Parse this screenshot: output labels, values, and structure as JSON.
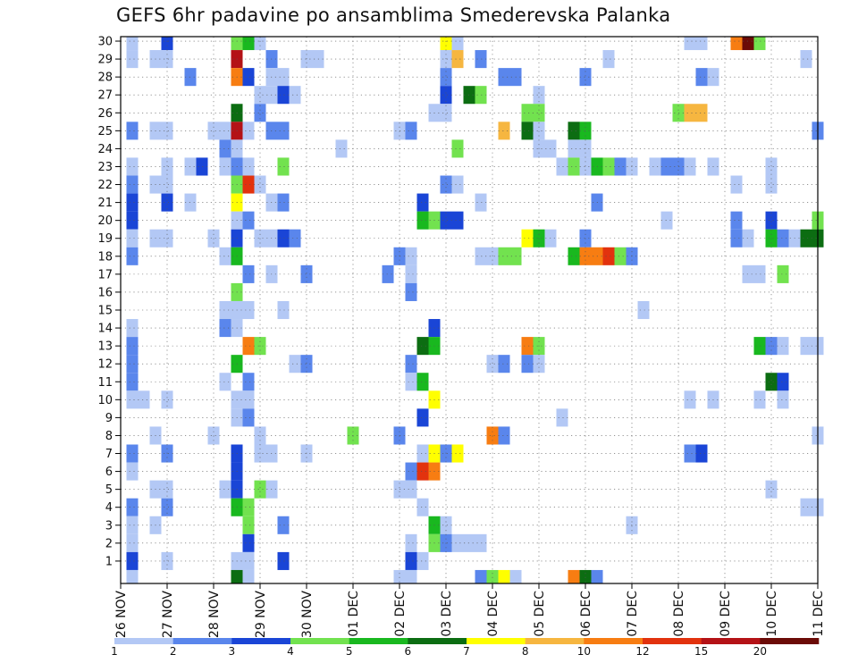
{
  "chart_data": {
    "type": "heatmap",
    "title": "GEFS 6hr padavine po ansamblima Smederevska Palanka",
    "xlabel": "",
    "ylabel": "",
    "x_tick_labels": [
      "26 NOV",
      "27 NOV",
      "28 NOV",
      "29 NOV",
      "30 NOV",
      "01 DEC",
      "02 DEC",
      "03 DEC",
      "04 DEC",
      "05 DEC",
      "06 DEC",
      "07 DEC",
      "08 DEC",
      "09 DEC",
      "10 DEC",
      "11 DEC"
    ],
    "y_tick_labels": [
      "1",
      "2",
      "3",
      "4",
      "5",
      "6",
      "7",
      "8",
      "9",
      "10",
      "11",
      "12",
      "13",
      "14",
      "15",
      "16",
      "17",
      "18",
      "19",
      "20",
      "21",
      "22",
      "23",
      "24",
      "25",
      "26",
      "27",
      "28",
      "29",
      "30"
    ],
    "x_range_steps": [
      0,
      60
    ],
    "steps_per_day": 4,
    "y_range_members": [
      0,
      30
    ],
    "grid": true,
    "grid_style": "dotted",
    "legend_position": "bottom",
    "legend": {
      "tick_labels": [
        "1",
        "2",
        "3",
        "4",
        "5",
        "6",
        "7",
        "8",
        "10",
        "12",
        "15",
        "20"
      ],
      "colors": [
        "#b3c8f5",
        "#5a86ec",
        "#1a45d6",
        "#72e24f",
        "#19b81f",
        "#0c6d12",
        "#ffff00",
        "#f6b640",
        "#f77d12",
        "#e2320e",
        "#b41216",
        "#6b0b07"
      ]
    },
    "cells": [
      [
        30,
        1,
        0
      ],
      [
        30,
        4,
        2
      ],
      [
        30,
        10,
        3
      ],
      [
        30,
        11,
        4
      ],
      [
        30,
        12,
        0
      ],
      [
        30,
        28,
        6
      ],
      [
        30,
        29,
        0
      ],
      [
        30,
        49,
        0
      ],
      [
        30,
        50,
        0
      ],
      [
        30,
        53,
        8
      ],
      [
        30,
        54,
        11
      ],
      [
        30,
        55,
        3
      ],
      [
        29,
        1,
        0
      ],
      [
        29,
        3,
        0
      ],
      [
        29,
        4,
        0
      ],
      [
        29,
        10,
        10
      ],
      [
        29,
        13,
        1
      ],
      [
        29,
        16,
        0
      ],
      [
        29,
        17,
        0
      ],
      [
        29,
        28,
        0
      ],
      [
        29,
        29,
        7
      ],
      [
        29,
        31,
        1
      ],
      [
        29,
        42,
        0
      ],
      [
        29,
        59,
        0
      ],
      [
        28,
        6,
        1
      ],
      [
        28,
        10,
        8
      ],
      [
        28,
        11,
        2
      ],
      [
        28,
        13,
        0
      ],
      [
        28,
        14,
        0
      ],
      [
        28,
        28,
        1
      ],
      [
        28,
        33,
        1
      ],
      [
        28,
        34,
        1
      ],
      [
        28,
        40,
        1
      ],
      [
        28,
        50,
        1
      ],
      [
        28,
        51,
        0
      ],
      [
        27,
        12,
        0
      ],
      [
        27,
        13,
        0
      ],
      [
        27,
        14,
        2
      ],
      [
        27,
        15,
        0
      ],
      [
        27,
        28,
        2
      ],
      [
        27,
        30,
        5
      ],
      [
        27,
        31,
        3
      ],
      [
        27,
        36,
        0
      ],
      [
        26,
        10,
        5
      ],
      [
        26,
        12,
        1
      ],
      [
        26,
        27,
        0
      ],
      [
        26,
        28,
        0
      ],
      [
        26,
        35,
        3
      ],
      [
        26,
        36,
        3
      ],
      [
        26,
        48,
        3
      ],
      [
        26,
        49,
        7
      ],
      [
        26,
        50,
        7
      ],
      [
        25,
        1,
        1
      ],
      [
        25,
        3,
        0
      ],
      [
        25,
        4,
        0
      ],
      [
        25,
        8,
        0
      ],
      [
        25,
        9,
        0
      ],
      [
        25,
        10,
        10
      ],
      [
        25,
        11,
        0
      ],
      [
        25,
        13,
        1
      ],
      [
        25,
        14,
        1
      ],
      [
        25,
        24,
        0
      ],
      [
        25,
        25,
        1
      ],
      [
        25,
        33,
        7
      ],
      [
        25,
        35,
        5
      ],
      [
        25,
        36,
        0
      ],
      [
        25,
        39,
        5
      ],
      [
        25,
        40,
        4
      ],
      [
        25,
        60,
        1
      ],
      [
        24,
        9,
        1
      ],
      [
        24,
        10,
        0
      ],
      [
        24,
        19,
        0
      ],
      [
        24,
        29,
        3
      ],
      [
        24,
        36,
        0
      ],
      [
        24,
        37,
        0
      ],
      [
        24,
        39,
        0
      ],
      [
        24,
        40,
        0
      ],
      [
        23,
        1,
        0
      ],
      [
        23,
        4,
        0
      ],
      [
        23,
        6,
        0
      ],
      [
        23,
        7,
        2
      ],
      [
        23,
        9,
        0
      ],
      [
        23,
        10,
        1
      ],
      [
        23,
        11,
        0
      ],
      [
        23,
        14,
        3
      ],
      [
        23,
        38,
        0
      ],
      [
        23,
        39,
        3
      ],
      [
        23,
        40,
        0
      ],
      [
        23,
        41,
        4
      ],
      [
        23,
        42,
        3
      ],
      [
        23,
        43,
        1
      ],
      [
        23,
        44,
        0
      ],
      [
        23,
        46,
        0
      ],
      [
        23,
        47,
        1
      ],
      [
        23,
        48,
        1
      ],
      [
        23,
        49,
        0
      ],
      [
        23,
        51,
        0
      ],
      [
        23,
        56,
        0
      ],
      [
        22,
        1,
        1
      ],
      [
        22,
        3,
        0
      ],
      [
        22,
        4,
        0
      ],
      [
        22,
        10,
        3
      ],
      [
        22,
        11,
        9
      ],
      [
        22,
        12,
        0
      ],
      [
        22,
        28,
        1
      ],
      [
        22,
        29,
        0
      ],
      [
        22,
        53,
        0
      ],
      [
        22,
        56,
        0
      ],
      [
        21,
        1,
        2
      ],
      [
        21,
        4,
        2
      ],
      [
        21,
        6,
        0
      ],
      [
        21,
        10,
        6
      ],
      [
        21,
        13,
        0
      ],
      [
        21,
        14,
        1
      ],
      [
        21,
        26,
        2
      ],
      [
        21,
        31,
        0
      ],
      [
        21,
        41,
        1
      ],
      [
        20,
        1,
        2
      ],
      [
        20,
        10,
        0
      ],
      [
        20,
        11,
        1
      ],
      [
        20,
        26,
        4
      ],
      [
        20,
        27,
        3
      ],
      [
        20,
        28,
        2
      ],
      [
        20,
        29,
        2
      ],
      [
        20,
        47,
        0
      ],
      [
        20,
        53,
        1
      ],
      [
        20,
        56,
        2
      ],
      [
        20,
        60,
        3
      ],
      [
        19,
        1,
        0
      ],
      [
        19,
        3,
        0
      ],
      [
        19,
        4,
        0
      ],
      [
        19,
        8,
        0
      ],
      [
        19,
        10,
        2
      ],
      [
        19,
        12,
        0
      ],
      [
        19,
        13,
        0
      ],
      [
        19,
        14,
        2
      ],
      [
        19,
        15,
        1
      ],
      [
        19,
        35,
        6
      ],
      [
        19,
        36,
        4
      ],
      [
        19,
        37,
        0
      ],
      [
        19,
        40,
        1
      ],
      [
        19,
        53,
        1
      ],
      [
        19,
        54,
        0
      ],
      [
        19,
        56,
        4
      ],
      [
        19,
        57,
        1
      ],
      [
        19,
        58,
        0
      ],
      [
        19,
        59,
        5
      ],
      [
        19,
        60,
        5
      ],
      [
        18,
        1,
        1
      ],
      [
        18,
        9,
        0
      ],
      [
        18,
        10,
        4
      ],
      [
        18,
        24,
        1
      ],
      [
        18,
        25,
        0
      ],
      [
        18,
        31,
        0
      ],
      [
        18,
        32,
        0
      ],
      [
        18,
        33,
        3
      ],
      [
        18,
        34,
        3
      ],
      [
        18,
        39,
        4
      ],
      [
        18,
        40,
        8
      ],
      [
        18,
        41,
        8
      ],
      [
        18,
        42,
        9
      ],
      [
        18,
        43,
        3
      ],
      [
        18,
        44,
        1
      ],
      [
        17,
        11,
        1
      ],
      [
        17,
        13,
        0
      ],
      [
        17,
        16,
        1
      ],
      [
        17,
        23,
        1
      ],
      [
        17,
        25,
        0
      ],
      [
        17,
        54,
        0
      ],
      [
        17,
        55,
        0
      ],
      [
        17,
        57,
        3
      ],
      [
        16,
        10,
        3
      ],
      [
        16,
        25,
        1
      ],
      [
        15,
        9,
        0
      ],
      [
        15,
        10,
        0
      ],
      [
        15,
        11,
        0
      ],
      [
        15,
        14,
        0
      ],
      [
        15,
        45,
        0
      ],
      [
        14,
        1,
        0
      ],
      [
        14,
        9,
        1
      ],
      [
        14,
        10,
        0
      ],
      [
        14,
        27,
        2
      ],
      [
        13,
        1,
        1
      ],
      [
        13,
        11,
        8
      ],
      [
        13,
        12,
        3
      ],
      [
        13,
        26,
        5
      ],
      [
        13,
        27,
        4
      ],
      [
        13,
        35,
        8
      ],
      [
        13,
        36,
        3
      ],
      [
        13,
        55,
        4
      ],
      [
        13,
        56,
        1
      ],
      [
        13,
        57,
        0
      ],
      [
        13,
        59,
        0
      ],
      [
        13,
        60,
        0
      ],
      [
        12,
        1,
        1
      ],
      [
        12,
        10,
        4
      ],
      [
        12,
        15,
        0
      ],
      [
        12,
        16,
        1
      ],
      [
        12,
        25,
        1
      ],
      [
        12,
        32,
        0
      ],
      [
        12,
        33,
        1
      ],
      [
        12,
        35,
        1
      ],
      [
        12,
        36,
        0
      ],
      [
        11,
        1,
        1
      ],
      [
        11,
        9,
        0
      ],
      [
        11,
        11,
        1
      ],
      [
        11,
        25,
        0
      ],
      [
        11,
        26,
        4
      ],
      [
        11,
        56,
        5
      ],
      [
        11,
        57,
        2
      ],
      [
        10,
        1,
        0
      ],
      [
        10,
        2,
        0
      ],
      [
        10,
        4,
        0
      ],
      [
        10,
        10,
        0
      ],
      [
        10,
        11,
        0
      ],
      [
        10,
        27,
        6
      ],
      [
        10,
        49,
        0
      ],
      [
        10,
        51,
        0
      ],
      [
        10,
        55,
        0
      ],
      [
        10,
        57,
        0
      ],
      [
        9,
        10,
        0
      ],
      [
        9,
        11,
        1
      ],
      [
        9,
        26,
        2
      ],
      [
        9,
        38,
        0
      ],
      [
        8,
        3,
        0
      ],
      [
        8,
        8,
        0
      ],
      [
        8,
        12,
        0
      ],
      [
        8,
        20,
        3
      ],
      [
        8,
        24,
        1
      ],
      [
        8,
        32,
        8
      ],
      [
        8,
        33,
        1
      ],
      [
        8,
        60,
        0
      ],
      [
        7,
        1,
        1
      ],
      [
        7,
        4,
        1
      ],
      [
        7,
        10,
        2
      ],
      [
        7,
        12,
        0
      ],
      [
        7,
        13,
        0
      ],
      [
        7,
        16,
        0
      ],
      [
        7,
        26,
        0
      ],
      [
        7,
        27,
        6
      ],
      [
        7,
        28,
        1
      ],
      [
        7,
        29,
        6
      ],
      [
        7,
        49,
        1
      ],
      [
        7,
        50,
        2
      ],
      [
        6,
        1,
        0
      ],
      [
        6,
        10,
        2
      ],
      [
        6,
        25,
        1
      ],
      [
        6,
        26,
        9
      ],
      [
        6,
        27,
        8
      ],
      [
        5,
        3,
        0
      ],
      [
        5,
        4,
        0
      ],
      [
        5,
        9,
        0
      ],
      [
        5,
        10,
        2
      ],
      [
        5,
        12,
        3
      ],
      [
        5,
        13,
        0
      ],
      [
        5,
        24,
        0
      ],
      [
        5,
        25,
        0
      ],
      [
        5,
        56,
        0
      ],
      [
        4,
        1,
        1
      ],
      [
        4,
        4,
        1
      ],
      [
        4,
        10,
        4
      ],
      [
        4,
        11,
        3
      ],
      [
        4,
        26,
        0
      ],
      [
        4,
        59,
        0
      ],
      [
        4,
        60,
        0
      ],
      [
        3,
        1,
        0
      ],
      [
        3,
        3,
        0
      ],
      [
        3,
        11,
        3
      ],
      [
        3,
        14,
        1
      ],
      [
        3,
        27,
        4
      ],
      [
        3,
        28,
        0
      ],
      [
        3,
        44,
        0
      ],
      [
        2,
        1,
        0
      ],
      [
        2,
        11,
        2
      ],
      [
        2,
        25,
        0
      ],
      [
        2,
        27,
        3
      ],
      [
        2,
        28,
        1
      ],
      [
        2,
        29,
        0
      ],
      [
        2,
        30,
        0
      ],
      [
        2,
        31,
        0
      ],
      [
        1,
        1,
        2
      ],
      [
        1,
        4,
        0
      ],
      [
        1,
        10,
        0
      ],
      [
        1,
        11,
        0
      ],
      [
        1,
        14,
        2
      ],
      [
        1,
        25,
        2
      ],
      [
        1,
        26,
        0
      ],
      [
        0,
        1,
        0
      ],
      [
        0,
        10,
        5
      ],
      [
        0,
        11,
        0
      ],
      [
        0,
        24,
        0
      ],
      [
        0,
        25,
        0
      ],
      [
        0,
        31,
        1
      ],
      [
        0,
        32,
        3
      ],
      [
        0,
        33,
        6
      ],
      [
        0,
        34,
        0
      ],
      [
        0,
        39,
        8
      ],
      [
        0,
        40,
        5
      ],
      [
        0,
        41,
        1
      ]
    ]
  }
}
